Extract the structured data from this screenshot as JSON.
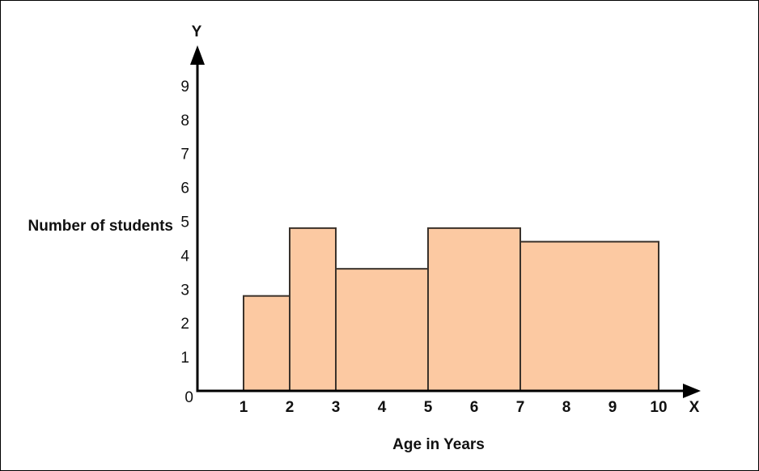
{
  "figure": {
    "background": "#ffffff",
    "frame_border_color": "#000000"
  },
  "chart_data": {
    "type": "bar",
    "subtype": "histogram",
    "title": "",
    "xlabel": "Age in Years",
    "ylabel": "Number of students",
    "x_axis_letter": "X",
    "y_axis_letter": "Y",
    "origin_label": "0",
    "x_ticks": [
      1,
      2,
      3,
      4,
      5,
      6,
      7,
      8,
      9,
      10
    ],
    "y_ticks": [
      1,
      2,
      3,
      4,
      5,
      6,
      7,
      8,
      9
    ],
    "xlim": [
      0,
      10.9
    ],
    "ylim": [
      0,
      10.2
    ],
    "grid": false,
    "legend": false,
    "bars": [
      {
        "x_start": 1,
        "x_end": 2,
        "value": 2.8
      },
      {
        "x_start": 2,
        "x_end": 3,
        "value": 4.8
      },
      {
        "x_start": 3,
        "x_end": 5,
        "value": 3.6
      },
      {
        "x_start": 5,
        "x_end": 7,
        "value": 4.8
      },
      {
        "x_start": 7,
        "x_end": 10,
        "value": 4.4
      }
    ],
    "style": {
      "bar_fill": "#fcc9a2",
      "bar_border": "#3a322b",
      "axis_color": "#000000",
      "text_color": "#111111"
    }
  }
}
